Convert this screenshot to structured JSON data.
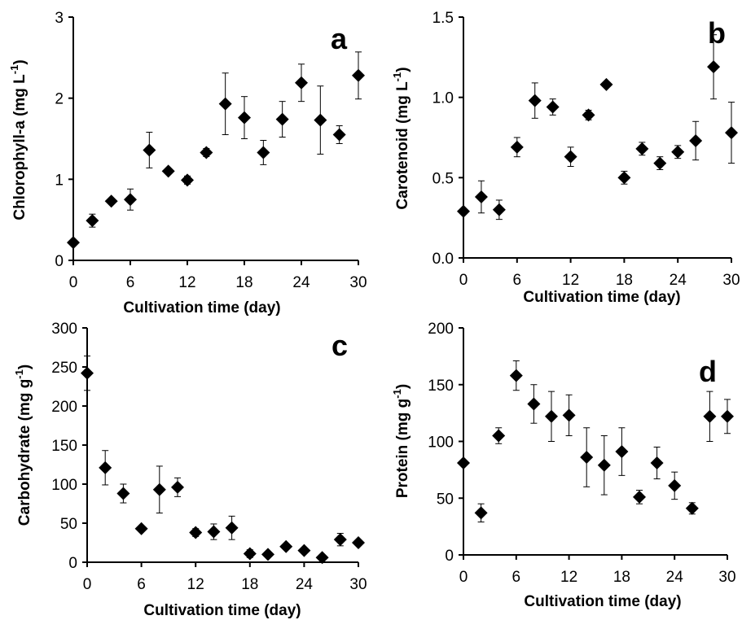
{
  "chart_data": [
    {
      "id": "a",
      "type": "scatter",
      "panel_letter": "a",
      "xlabel": "Cultivation time (day)",
      "ylabel": "Chlorophyll-a (mg L⁻¹)",
      "ylabel_parts": [
        "Chlorophyll-a (mg L",
        "-1",
        ")"
      ],
      "xlim": [
        0,
        30
      ],
      "ylim": [
        0,
        3
      ],
      "xticks": [
        0,
        6,
        12,
        18,
        24,
        30
      ],
      "yticks": [
        0,
        1,
        2,
        3
      ],
      "ytick_labels": [
        "0",
        "1",
        "2",
        "3"
      ],
      "grid": false,
      "marker": "diamond",
      "points": [
        {
          "x": 0,
          "y": 0.22,
          "err": 0
        },
        {
          "x": 2,
          "y": 0.49,
          "err": 0.08
        },
        {
          "x": 4,
          "y": 0.73,
          "err": 0.0
        },
        {
          "x": 6,
          "y": 0.75,
          "err": 0.13
        },
        {
          "x": 8,
          "y": 1.36,
          "err": 0.22
        },
        {
          "x": 10,
          "y": 1.1,
          "err": 0.0
        },
        {
          "x": 12,
          "y": 0.99,
          "err": 0.05
        },
        {
          "x": 14,
          "y": 1.33,
          "err": 0.05
        },
        {
          "x": 16,
          "y": 1.93,
          "err": 0.38
        },
        {
          "x": 18,
          "y": 1.76,
          "err": 0.26
        },
        {
          "x": 20,
          "y": 1.33,
          "err": 0.15
        },
        {
          "x": 22,
          "y": 1.74,
          "err": 0.22
        },
        {
          "x": 24,
          "y": 2.19,
          "err": 0.23
        },
        {
          "x": 26,
          "y": 1.73,
          "err": 0.42
        },
        {
          "x": 28,
          "y": 1.55,
          "err": 0.11
        },
        {
          "x": 30,
          "y": 2.28,
          "err": 0.29
        }
      ]
    },
    {
      "id": "b",
      "type": "scatter",
      "panel_letter": "b",
      "xlabel": "Cultivation time (day)",
      "ylabel": "Carotenoid (mg L⁻¹)",
      "ylabel_parts": [
        "Carotenoid (mg L",
        "-1",
        ")"
      ],
      "xlim": [
        0,
        30
      ],
      "ylim": [
        0,
        1.5
      ],
      "xticks": [
        0,
        6,
        12,
        18,
        24,
        30
      ],
      "yticks": [
        0,
        0.5,
        1.0,
        1.5
      ],
      "ytick_labels": [
        "0.0",
        "0.5",
        "1.0",
        "1.5"
      ],
      "grid": false,
      "marker": "diamond",
      "points": [
        {
          "x": 0,
          "y": 0.29,
          "err": 0
        },
        {
          "x": 2,
          "y": 0.38,
          "err": 0.1
        },
        {
          "x": 4,
          "y": 0.3,
          "err": 0.06
        },
        {
          "x": 6,
          "y": 0.69,
          "err": 0.06
        },
        {
          "x": 8,
          "y": 0.98,
          "err": 0.11
        },
        {
          "x": 10,
          "y": 0.94,
          "err": 0.05
        },
        {
          "x": 12,
          "y": 0.63,
          "err": 0.06
        },
        {
          "x": 14,
          "y": 0.89,
          "err": 0.03
        },
        {
          "x": 16,
          "y": 1.08,
          "err": 0.0
        },
        {
          "x": 18,
          "y": 0.5,
          "err": 0.04
        },
        {
          "x": 20,
          "y": 0.68,
          "err": 0.04
        },
        {
          "x": 22,
          "y": 0.59,
          "err": 0.04
        },
        {
          "x": 24,
          "y": 0.66,
          "err": 0.04
        },
        {
          "x": 26,
          "y": 0.73,
          "err": 0.12
        },
        {
          "x": 28,
          "y": 1.19,
          "err": 0.2
        },
        {
          "x": 30,
          "y": 0.78,
          "err": 0.19
        }
      ]
    },
    {
      "id": "c",
      "type": "scatter",
      "panel_letter": "c",
      "xlabel": "Cultivation time (day)",
      "ylabel": "Carbohydrate (mg g⁻¹)",
      "ylabel_parts": [
        "Carbohydrate (mg g",
        "-1",
        ")"
      ],
      "xlim": [
        0,
        30
      ],
      "ylim": [
        0,
        300
      ],
      "xticks": [
        0,
        6,
        12,
        18,
        24,
        30
      ],
      "yticks": [
        0,
        50,
        100,
        150,
        200,
        250,
        300
      ],
      "ytick_labels": [
        "0",
        "50",
        "100",
        "150",
        "200",
        "250",
        "300"
      ],
      "grid": false,
      "marker": "diamond",
      "points": [
        {
          "x": 0,
          "y": 242,
          "err": 22
        },
        {
          "x": 2,
          "y": 121,
          "err": 22
        },
        {
          "x": 4,
          "y": 88,
          "err": 12
        },
        {
          "x": 6,
          "y": 43,
          "err": 0
        },
        {
          "x": 8,
          "y": 93,
          "err": 30
        },
        {
          "x": 10,
          "y": 96,
          "err": 12
        },
        {
          "x": 12,
          "y": 38,
          "err": 5
        },
        {
          "x": 14,
          "y": 39,
          "err": 10
        },
        {
          "x": 16,
          "y": 44,
          "err": 15
        },
        {
          "x": 18,
          "y": 11,
          "err": 5
        },
        {
          "x": 20,
          "y": 10,
          "err": 0
        },
        {
          "x": 22,
          "y": 20,
          "err": 3
        },
        {
          "x": 24,
          "y": 15,
          "err": 0
        },
        {
          "x": 26,
          "y": 6,
          "err": 0
        },
        {
          "x": 28,
          "y": 29,
          "err": 8
        },
        {
          "x": 30,
          "y": 25,
          "err": 0
        }
      ]
    },
    {
      "id": "d",
      "type": "scatter",
      "panel_letter": "d",
      "xlabel": "Cultivation time (day)",
      "ylabel": "Protein (mg g⁻¹)",
      "ylabel_parts": [
        "Protein (mg g",
        "-1",
        ")"
      ],
      "xlim": [
        0,
        30
      ],
      "ylim": [
        0,
        200
      ],
      "xticks": [
        0,
        6,
        12,
        18,
        24,
        30
      ],
      "yticks": [
        0,
        50,
        100,
        150,
        200
      ],
      "ytick_labels": [
        "0",
        "50",
        "100",
        "150",
        "200"
      ],
      "grid": false,
      "marker": "diamond",
      "points": [
        {
          "x": 0,
          "y": 81,
          "err": 0
        },
        {
          "x": 2,
          "y": 37,
          "err": 8
        },
        {
          "x": 4,
          "y": 105,
          "err": 7
        },
        {
          "x": 6,
          "y": 158,
          "err": 13
        },
        {
          "x": 8,
          "y": 133,
          "err": 17
        },
        {
          "x": 10,
          "y": 122,
          "err": 22
        },
        {
          "x": 12,
          "y": 123,
          "err": 18
        },
        {
          "x": 14,
          "y": 86,
          "err": 26
        },
        {
          "x": 16,
          "y": 79,
          "err": 26
        },
        {
          "x": 18,
          "y": 91,
          "err": 21
        },
        {
          "x": 20,
          "y": 51,
          "err": 6
        },
        {
          "x": 22,
          "y": 81,
          "err": 14
        },
        {
          "x": 24,
          "y": 61,
          "err": 12
        },
        {
          "x": 26,
          "y": 41,
          "err": 5
        },
        {
          "x": 28,
          "y": 122,
          "err": 22
        },
        {
          "x": 30,
          "y": 122,
          "err": 15
        }
      ]
    }
  ]
}
